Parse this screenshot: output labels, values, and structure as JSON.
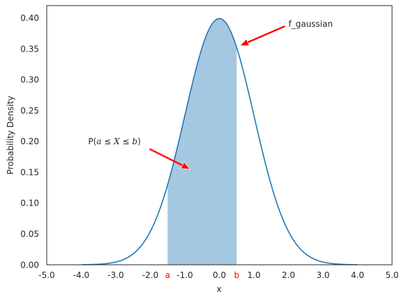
{
  "chart_data": {
    "type": "area",
    "title": "",
    "xlabel": "x",
    "ylabel": "Probability Density",
    "xlim": [
      -5.0,
      5.0
    ],
    "ylim": [
      0.0,
      0.42
    ],
    "grid": false,
    "x_ticks": [
      {
        "value": -5.0,
        "label": "-5.0"
      },
      {
        "value": -4.0,
        "label": "-4.0"
      },
      {
        "value": -3.0,
        "label": "-3.0"
      },
      {
        "value": -2.0,
        "label": "-2.0"
      },
      {
        "value": -1.0,
        "label": "-1.0"
      },
      {
        "value": 0.0,
        "label": "0.0"
      },
      {
        "value": 1.0,
        "label": "1.0"
      },
      {
        "value": 2.0,
        "label": "2.0"
      },
      {
        "value": 3.0,
        "label": "3.0"
      },
      {
        "value": 4.0,
        "label": "4.0"
      },
      {
        "value": 5.0,
        "label": "5.0"
      }
    ],
    "y_ticks": [
      {
        "value": 0.0,
        "label": "0.00"
      },
      {
        "value": 0.05,
        "label": "0.05"
      },
      {
        "value": 0.1,
        "label": "0.10"
      },
      {
        "value": 0.15,
        "label": "0.15"
      },
      {
        "value": 0.2,
        "label": "0.20"
      },
      {
        "value": 0.25,
        "label": "0.25"
      },
      {
        "value": 0.3,
        "label": "0.30"
      },
      {
        "value": 0.35,
        "label": "0.35"
      },
      {
        "value": 0.4,
        "label": "0.40"
      }
    ],
    "series": [
      {
        "name": "f_gaussian",
        "function": "normal pdf",
        "mean": 0.0,
        "std": 1.0,
        "x_range": [
          -4.0,
          4.0
        ],
        "color": "#1f77b4"
      }
    ],
    "shaded_region": {
      "from": -1.5,
      "to": 0.5,
      "color": "#a5c8e1"
    },
    "interval_markers": [
      {
        "value": -1.5,
        "label": "a",
        "color": "#ff0000"
      },
      {
        "value": 0.5,
        "label": "b",
        "color": "#ff0000"
      }
    ],
    "annotations": [
      {
        "id": "curve",
        "label": "f_gaussian",
        "text_pos": [
          2.0,
          0.39
        ],
        "arrow_target": [
          0.6,
          0.355
        ],
        "arrow_color": "#ff0000"
      },
      {
        "id": "area",
        "label_parts": [
          "P(",
          "a",
          " ≤ ",
          "X",
          " ≤ ",
          "b",
          ")"
        ],
        "text_pos": [
          -3.8,
          0.2
        ],
        "arrow_target": [
          -0.85,
          0.155
        ],
        "arrow_color": "#ff0000"
      }
    ]
  }
}
